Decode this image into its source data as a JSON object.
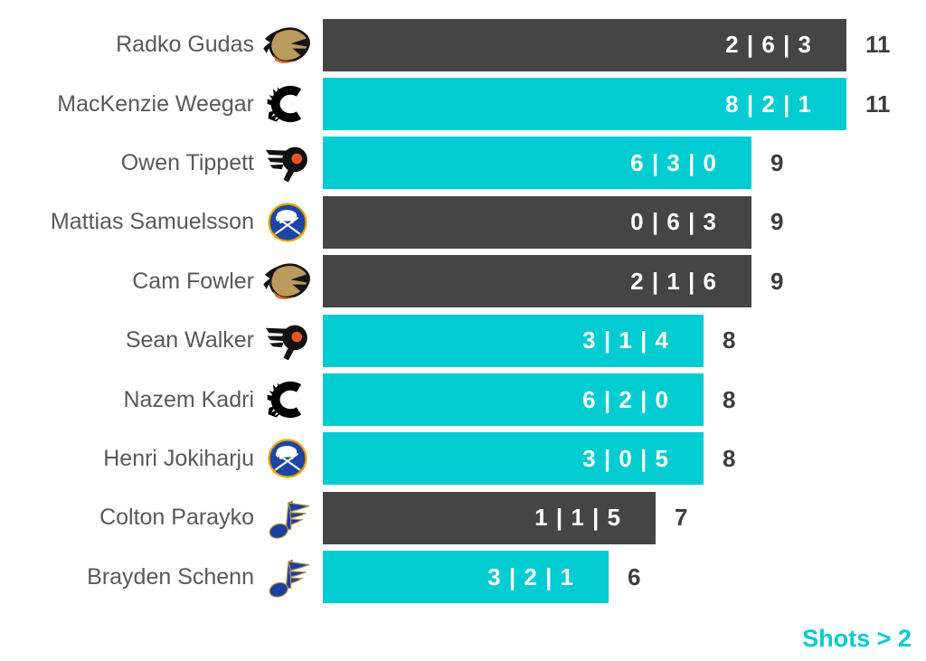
{
  "chart_data": {
    "type": "bar",
    "orientation": "horizontal",
    "title": "",
    "footer_label": "Shots > 2",
    "unit": "shots",
    "xlim": [
      0,
      11
    ],
    "grid": false,
    "legend": [],
    "categories": [
      "Radko Gudas",
      "MacKenzie Weegar",
      "Owen Tippett",
      "Mattias Samuelsson",
      "Cam Fowler",
      "Sean Walker",
      "Nazem Kadri",
      "Henri Jokiharju",
      "Colton Parayko",
      "Brayden Schenn"
    ],
    "values": [
      11,
      11,
      9,
      9,
      9,
      8,
      8,
      8,
      7,
      6
    ],
    "rows": [
      {
        "player": "Radko Gudas",
        "team": "Anaheim Ducks",
        "logo": "anaheim-ducks",
        "segments": [
          2,
          6,
          3
        ],
        "segments_label": "2 | 6 | 3",
        "total": 11,
        "color": "bar_dark"
      },
      {
        "player": "MacKenzie Weegar",
        "team": "Calgary Flames",
        "logo": "calgary-flames",
        "segments": [
          8,
          2,
          1
        ],
        "segments_label": "8 | 2 | 1",
        "total": 11,
        "color": "bar_teal"
      },
      {
        "player": "Owen Tippett",
        "team": "Philadelphia Flyers",
        "logo": "philadelphia-flyers",
        "segments": [
          6,
          3,
          0
        ],
        "segments_label": "6 | 3 | 0",
        "total": 9,
        "color": "bar_teal"
      },
      {
        "player": "Mattias Samuelsson",
        "team": "Buffalo Sabres",
        "logo": "buffalo-sabres",
        "segments": [
          0,
          6,
          3
        ],
        "segments_label": "0 | 6 | 3",
        "total": 9,
        "color": "bar_dark"
      },
      {
        "player": "Cam Fowler",
        "team": "Anaheim Ducks",
        "logo": "anaheim-ducks",
        "segments": [
          2,
          1,
          6
        ],
        "segments_label": "2 | 1 | 6",
        "total": 9,
        "color": "bar_dark"
      },
      {
        "player": "Sean Walker",
        "team": "Philadelphia Flyers",
        "logo": "philadelphia-flyers",
        "segments": [
          3,
          1,
          4
        ],
        "segments_label": "3 | 1 | 4",
        "total": 8,
        "color": "bar_teal"
      },
      {
        "player": "Nazem Kadri",
        "team": "Calgary Flames",
        "logo": "calgary-flames",
        "segments": [
          6,
          2,
          0
        ],
        "segments_label": "6 | 2 | 0",
        "total": 8,
        "color": "bar_teal"
      },
      {
        "player": "Henri Jokiharju",
        "team": "Buffalo Sabres",
        "logo": "buffalo-sabres",
        "segments": [
          3,
          0,
          5
        ],
        "segments_label": "3 | 0 | 5",
        "total": 8,
        "color": "bar_teal"
      },
      {
        "player": "Colton Parayko",
        "team": "St. Louis Blues",
        "logo": "st-louis-blues",
        "segments": [
          1,
          1,
          5
        ],
        "segments_label": "1 | 1 | 5",
        "total": 7,
        "color": "bar_dark"
      },
      {
        "player": "Brayden Schenn",
        "team": "St. Louis Blues",
        "logo": "st-louis-blues",
        "segments": [
          3,
          2,
          1
        ],
        "segments_label": "3 | 2 | 1",
        "total": 6,
        "color": "bar_teal"
      }
    ]
  },
  "colors": {
    "bar_dark": "#454545",
    "bar_teal": "#00ccd2",
    "name_text": "#595959",
    "total_text": "#3d3d3d",
    "inbar_text": "#ffffff",
    "footer_text": "#00ccd2",
    "background": "#ffffff"
  }
}
